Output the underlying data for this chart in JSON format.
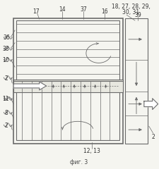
{
  "bg_color": "#f5f5f0",
  "line_color": "#6a6a6a",
  "fig_label": "фиг. 3",
  "lc": "#6a6a6a"
}
